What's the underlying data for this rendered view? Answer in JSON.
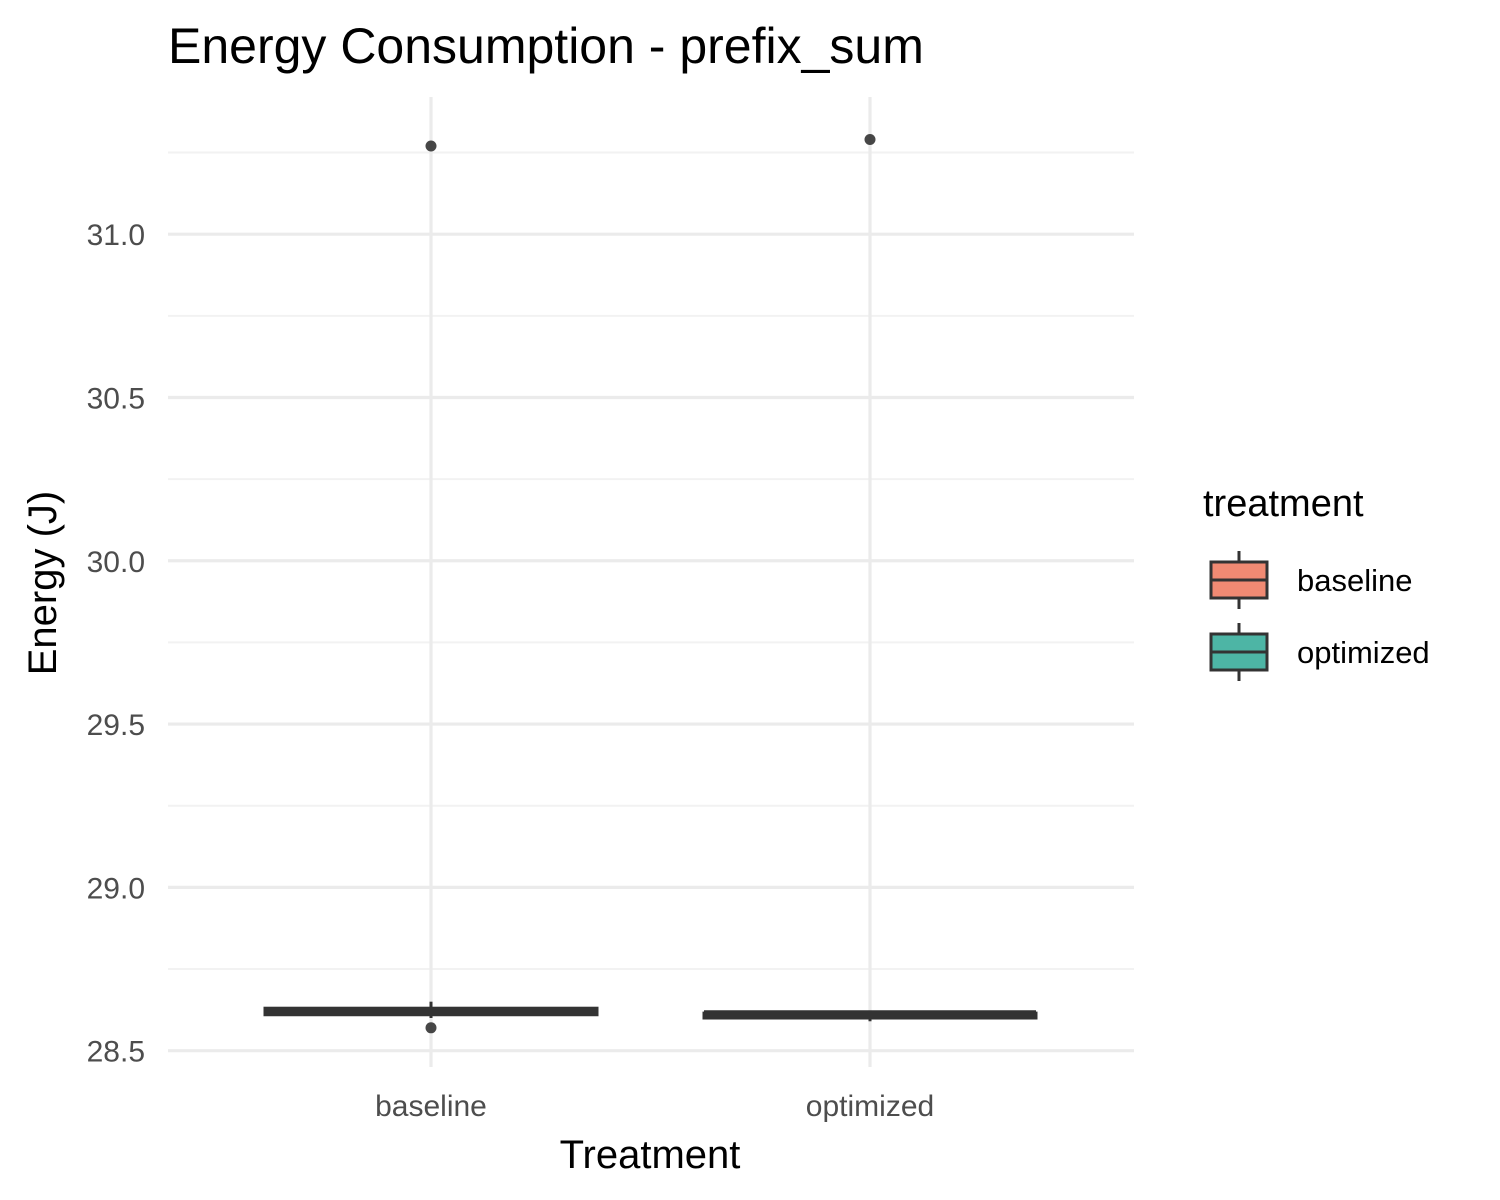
{
  "chart_data": {
    "type": "box",
    "title": "Energy Consumption - prefix_sum",
    "xlabel": "Treatment",
    "ylabel": "Energy (J)",
    "categories": [
      "baseline",
      "optimized"
    ],
    "ylim": [
      28.45,
      31.42
    ],
    "yticks": [
      28.5,
      29.0,
      29.5,
      30.0,
      30.5,
      31.0
    ],
    "ytick_labels": [
      "28.5",
      "29.0",
      "29.5",
      "30.0",
      "30.5",
      "31.0"
    ],
    "grid": true,
    "legend": {
      "title": "treatment",
      "position": "right",
      "entries": [
        "baseline",
        "optimized"
      ]
    },
    "series": [
      {
        "category": "baseline",
        "color": "#F08A73",
        "min": 28.6,
        "q1": 28.61,
        "median": 28.62,
        "q3": 28.63,
        "max": 28.65,
        "outliers": [
          31.27,
          28.57
        ]
      },
      {
        "category": "optimized",
        "color": "#4DB5A5",
        "min": 28.59,
        "q1": 28.6,
        "median": 28.61,
        "q3": 28.615,
        "max": 28.62,
        "outliers": [
          31.29
        ]
      }
    ]
  }
}
